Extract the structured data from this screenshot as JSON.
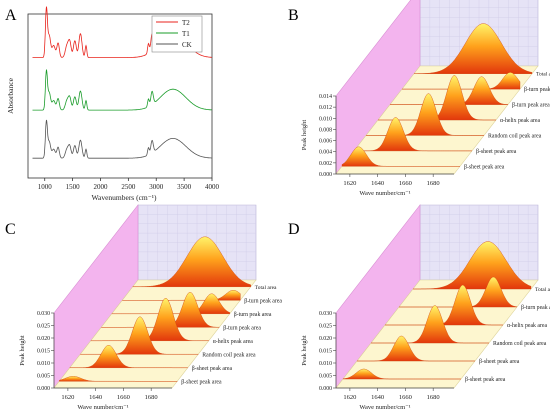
{
  "panels": [
    {
      "letter": "A"
    },
    {
      "letter": "B"
    },
    {
      "letter": "C"
    },
    {
      "letter": "D"
    }
  ],
  "chart_data": [
    {
      "panel": "A",
      "type": "line",
      "xlabel": "Wavenumbers (cm⁻¹)",
      "ylabel": "Absorbance",
      "xticks": [
        "1000",
        "1500",
        "2000",
        "2500",
        "3000",
        "3500",
        "4000"
      ],
      "xlim": [
        700,
        4000
      ],
      "legend_position": "top-right",
      "series": [
        {
          "name": "T2",
          "color": "#e8231c"
        },
        {
          "name": "T1",
          "color": "#1a9c2a"
        },
        {
          "name": "CK",
          "color": "#555555"
        }
      ]
    },
    {
      "panel": "B",
      "type": "area",
      "xlabel": "Wave number/cm⁻¹",
      "ylabel": "Peak height",
      "xticks": [
        "1620",
        "1640",
        "1660",
        "1680"
      ],
      "yticks": [
        "0.000",
        "0.002",
        "0.004",
        "0.006",
        "0.008",
        "0.010",
        "0.012",
        "0.014"
      ],
      "ylim": [
        0,
        0.014
      ],
      "rows": [
        {
          "label": "β-sheet peak area",
          "center": 1622,
          "height": 0.0035
        },
        {
          "label": "β-sheet peak area",
          "center": 1640,
          "height": 0.006
        },
        {
          "label": "Random coil peak area",
          "center": 1655,
          "height": 0.0075
        },
        {
          "label": "α-helix peak area",
          "center": 1665,
          "height": 0.008
        },
        {
          "label": "β-turn peak area",
          "center": 1676,
          "height": 0.005
        },
        {
          "label": "β-turn peak area",
          "center": 1688,
          "height": 0.003
        },
        {
          "label": "Total area",
          "center": 1660,
          "height": 0.009
        }
      ]
    },
    {
      "panel": "C",
      "type": "area",
      "xlabel": "Wave number/cm⁻¹",
      "ylabel": "Peak height",
      "xticks": [
        "1620",
        "1640",
        "1660",
        "1680"
      ],
      "yticks": [
        "0.000",
        "0.005",
        "0.010",
        "0.015",
        "0.020",
        "0.025",
        "0.030"
      ],
      "ylim": [
        0,
        0.03
      ],
      "rows": [
        {
          "label": "β-sheet peak area",
          "center": 1620,
          "height": 0.002
        },
        {
          "label": "β-sheet peak area",
          "center": 1638,
          "height": 0.009
        },
        {
          "label": "Random coil peak area",
          "center": 1653,
          "height": 0.015
        },
        {
          "label": "α-helix peak area",
          "center": 1664,
          "height": 0.017
        },
        {
          "label": "β-turn peak area",
          "center": 1674,
          "height": 0.014
        },
        {
          "label": "β-turn peak area",
          "center": 1682,
          "height": 0.008
        },
        {
          "label": "β-turn peak area",
          "center": 1690,
          "height": 0.004
        },
        {
          "label": "Total area",
          "center": 1662,
          "height": 0.02
        }
      ]
    },
    {
      "panel": "D",
      "type": "area",
      "xlabel": "Wave number/cm⁻¹",
      "ylabel": "Peak height",
      "xticks": [
        "1620",
        "1640",
        "1660",
        "1680"
      ],
      "yticks": [
        "0.000",
        "0.005",
        "0.010",
        "0.015",
        "0.020",
        "0.025",
        "0.030"
      ],
      "ylim": [
        0,
        0.03
      ],
      "rows": [
        {
          "label": "β-sheet peak area",
          "center": 1625,
          "height": 0.004
        },
        {
          "label": "β-sheet peak area",
          "center": 1642,
          "height": 0.01
        },
        {
          "label": "Random coil peak area",
          "center": 1656,
          "height": 0.015
        },
        {
          "label": "α-helix peak area",
          "center": 1666,
          "height": 0.016
        },
        {
          "label": "β-turn peak area",
          "center": 1678,
          "height": 0.012
        },
        {
          "label": "Total area",
          "center": 1664,
          "height": 0.019
        }
      ]
    }
  ]
}
